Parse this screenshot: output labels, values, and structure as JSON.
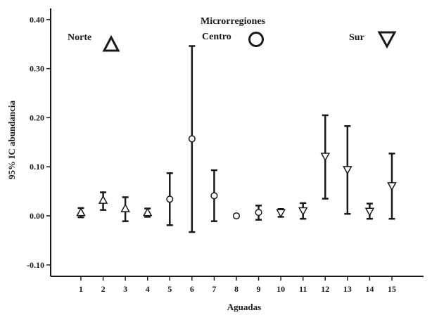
{
  "chart_data": {
    "type": "scatter",
    "subtype": "error-bar",
    "title": "",
    "xlabel": "Aguadas",
    "ylabel": "95% IC abundancia",
    "ylim": [
      -0.13,
      0.42
    ],
    "yticks": [
      -0.1,
      0.0,
      0.1,
      0.2,
      0.3,
      0.4
    ],
    "ytick_labels": [
      "-0.10",
      "0.00",
      "0.10",
      "0.20",
      "0.30",
      "0.40"
    ],
    "xticks": [
      "1",
      "2",
      "3",
      "4",
      "5",
      "6",
      "7",
      "8",
      "9",
      "10",
      "11",
      "12",
      "13",
      "14",
      "15"
    ],
    "grid": false,
    "legend_title": "Microrregiones",
    "legend_position": "top",
    "series": [
      {
        "name": "Norte",
        "marker": "triangle-up",
        "points": [
          {
            "aguada": "1",
            "mean": 0.007,
            "low": -0.003,
            "high": 0.016
          },
          {
            "aguada": "2",
            "mean": 0.032,
            "low": 0.012,
            "high": 0.048
          },
          {
            "aguada": "3",
            "mean": 0.015,
            "low": -0.011,
            "high": 0.038
          },
          {
            "aguada": "4",
            "mean": 0.007,
            "low": -0.002,
            "high": 0.015
          }
        ]
      },
      {
        "name": "Centro",
        "marker": "circle",
        "points": [
          {
            "aguada": "5",
            "mean": 0.034,
            "low": -0.019,
            "high": 0.087
          },
          {
            "aguada": "6",
            "mean": 0.157,
            "low": -0.033,
            "high": 0.346
          },
          {
            "aguada": "7",
            "mean": 0.041,
            "low": -0.011,
            "high": 0.093
          },
          {
            "aguada": "8",
            "mean": 0.0,
            "low": 0.0,
            "high": 0.0
          },
          {
            "aguada": "9",
            "mean": 0.007,
            "low": -0.008,
            "high": 0.021
          }
        ]
      },
      {
        "name": "Sur",
        "marker": "triangle-down",
        "points": [
          {
            "aguada": "10",
            "mean": 0.006,
            "low": -0.002,
            "high": 0.014
          },
          {
            "aguada": "11",
            "mean": 0.01,
            "low": -0.006,
            "high": 0.026
          },
          {
            "aguada": "12",
            "mean": 0.121,
            "low": 0.035,
            "high": 0.205
          },
          {
            "aguada": "13",
            "mean": 0.094,
            "low": 0.004,
            "high": 0.183
          },
          {
            "aguada": "14",
            "mean": 0.009,
            "low": -0.006,
            "high": 0.025
          },
          {
            "aguada": "15",
            "mean": 0.061,
            "low": -0.006,
            "high": 0.127
          }
        ]
      }
    ]
  }
}
